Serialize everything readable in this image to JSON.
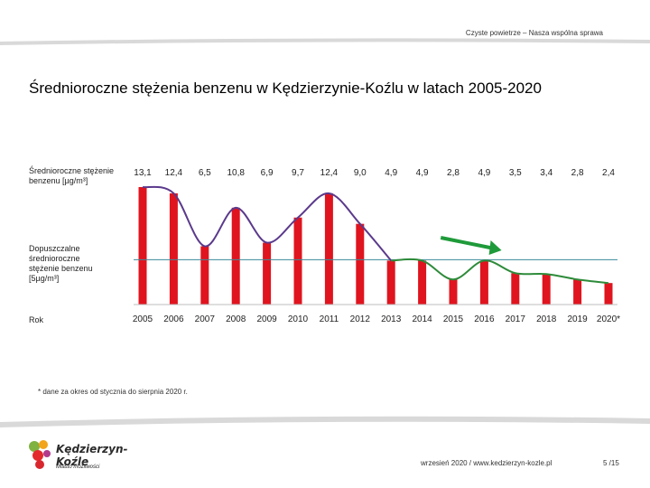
{
  "header": {
    "slogan": "Czyste powietrze – Nasza wspólna sprawa"
  },
  "title": "Średnioroczne stężenia benzenu w Kędzierzynie-Koźlu w latach 2005-2020",
  "row_labels": {
    "value_row": "Średnioroczne stężenie benzenu [µg/m³]",
    "limit_row": "Dopuszczalne średnioroczne stężenie benzenu [5µg/m³]",
    "year_row": "Rok"
  },
  "chart_data": {
    "type": "bar",
    "categories": [
      "2005",
      "2006",
      "2007",
      "2008",
      "2009",
      "2010",
      "2011",
      "2012",
      "2013",
      "2014",
      "2015",
      "2016",
      "2017",
      "2018",
      "2019",
      "2020*"
    ],
    "values": [
      13.1,
      12.4,
      6.5,
      10.8,
      6.9,
      9.7,
      12.4,
      9.0,
      4.9,
      4.9,
      2.8,
      4.9,
      3.5,
      3.4,
      2.8,
      2.4
    ],
    "value_labels": [
      "13,1",
      "12,4",
      "6,5",
      "10,8",
      "6,9",
      "9,7",
      "12,4",
      "9,0",
      "4,9",
      "4,9",
      "2,8",
      "4,9",
      "3,5",
      "3,4",
      "2,8",
      "2,4"
    ],
    "limit_value": 5,
    "trend_arrow": "down",
    "colors": {
      "bars": "#e0141e",
      "trend_early": "#5b3a8c",
      "trend_late": "#2e8b3a",
      "limit_line": "#3a8a9a",
      "arrow": "#1f9a3a"
    }
  },
  "footnote": "* dane za okres od stycznia do sierpnia 2020 r.",
  "footer": {
    "date_url": "wrzesień 2020 / www.kedzierzyn-kozle.pl",
    "page": "5 /15"
  },
  "logo": {
    "name": "Kędzierzyn-Koźle",
    "tagline": "Miasto możliwości"
  }
}
